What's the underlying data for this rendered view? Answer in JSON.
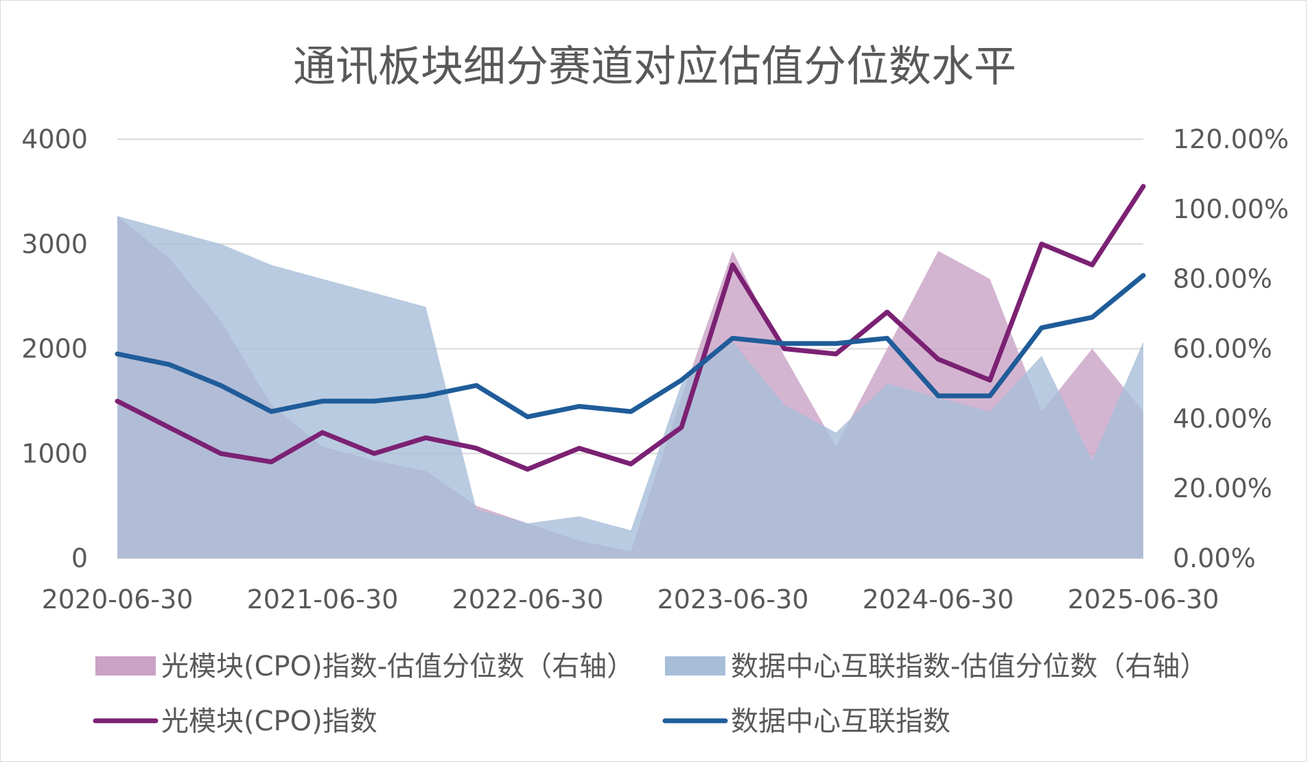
{
  "chart_data": {
    "type": "area",
    "title": "通讯板块细分赛道对应估值分位数水平",
    "x_tick_labels": [
      "2020-06-30",
      "2021-06-30",
      "2022-06-30",
      "2023-06-30",
      "2024-06-30",
      "2025-06-30"
    ],
    "x_range": [
      "2020-06-30",
      "2025-06-30"
    ],
    "left_axis": {
      "ylim": [
        0,
        4000
      ],
      "tick_labels": [
        "0",
        "1000",
        "2000",
        "3000",
        "4000"
      ]
    },
    "right_axis": {
      "ylim": [
        0,
        1.2
      ],
      "tick_labels": [
        "0.00%",
        "20.00%",
        "40.00%",
        "60.00%",
        "80.00%",
        "100.00%",
        "120.00%"
      ]
    },
    "grid": "horizontal",
    "legend_position": "bottom",
    "series": [
      {
        "name": "光模块(CPO)指数-估值分位数（右轴）",
        "type": "area",
        "axis": "right",
        "color": "#c9a2c6",
        "x": [
          "2020-06-30",
          "2020-09-30",
          "2020-12-31",
          "2021-03-31",
          "2021-06-30",
          "2021-09-30",
          "2021-12-31",
          "2022-03-31",
          "2022-06-30",
          "2022-09-30",
          "2022-12-31",
          "2023-03-31",
          "2023-06-30",
          "2023-09-30",
          "2023-12-31",
          "2024-03-31",
          "2024-06-30",
          "2024-09-30",
          "2024-12-31",
          "2025-03-31",
          "2025-06-30"
        ],
        "values": [
          0.98,
          0.86,
          0.68,
          0.44,
          0.32,
          0.28,
          0.25,
          0.15,
          0.1,
          0.05,
          0.02,
          0.46,
          0.88,
          0.58,
          0.32,
          0.6,
          0.88,
          0.8,
          0.42,
          0.6,
          0.42
        ]
      },
      {
        "name": "数据中心互联指数-估值分位数（右轴）",
        "type": "area",
        "axis": "right",
        "color": "#a7bed8",
        "x": [
          "2020-06-30",
          "2020-09-30",
          "2020-12-31",
          "2021-03-31",
          "2021-06-30",
          "2021-09-30",
          "2021-12-31",
          "2022-03-31",
          "2022-06-30",
          "2022-09-30",
          "2022-12-31",
          "2023-03-31",
          "2023-06-30",
          "2023-09-30",
          "2023-12-31",
          "2024-03-31",
          "2024-06-30",
          "2024-09-30",
          "2024-12-31",
          "2025-03-31",
          "2025-06-30"
        ],
        "values": [
          0.98,
          0.94,
          0.9,
          0.84,
          0.8,
          0.76,
          0.72,
          0.14,
          0.1,
          0.12,
          0.08,
          0.5,
          0.62,
          0.44,
          0.36,
          0.5,
          0.46,
          0.42,
          0.58,
          0.28,
          0.62
        ]
      },
      {
        "name": "光模块(CPO)指数",
        "type": "line",
        "axis": "left",
        "color": "#7b2173",
        "x": [
          "2020-06-30",
          "2020-09-30",
          "2020-12-31",
          "2021-03-31",
          "2021-06-30",
          "2021-09-30",
          "2021-12-31",
          "2022-03-31",
          "2022-06-30",
          "2022-09-30",
          "2022-12-31",
          "2023-03-31",
          "2023-06-30",
          "2023-09-30",
          "2023-12-31",
          "2024-03-31",
          "2024-06-30",
          "2024-09-30",
          "2024-12-31",
          "2025-03-31",
          "2025-06-30"
        ],
        "values": [
          1500,
          1250,
          1000,
          920,
          1200,
          1000,
          1150,
          1050,
          850,
          1050,
          900,
          1250,
          2800,
          2000,
          1950,
          2350,
          1900,
          1700,
          3000,
          2800,
          3550
        ]
      },
      {
        "name": "数据中心互联指数",
        "type": "line",
        "axis": "left",
        "color": "#1f5c99",
        "x": [
          "2020-06-30",
          "2020-09-30",
          "2020-12-31",
          "2021-03-31",
          "2021-06-30",
          "2021-09-30",
          "2021-12-31",
          "2022-03-31",
          "2022-06-30",
          "2022-09-30",
          "2022-12-31",
          "2023-03-31",
          "2023-06-30",
          "2023-09-30",
          "2023-12-31",
          "2024-03-31",
          "2024-06-30",
          "2024-09-30",
          "2024-12-31",
          "2025-03-31",
          "2025-06-30"
        ],
        "values": [
          1950,
          1850,
          1650,
          1400,
          1500,
          1500,
          1550,
          1650,
          1350,
          1450,
          1400,
          1700,
          2100,
          2050,
          2050,
          2100,
          1550,
          1550,
          2200,
          2300,
          2700
        ]
      }
    ]
  }
}
